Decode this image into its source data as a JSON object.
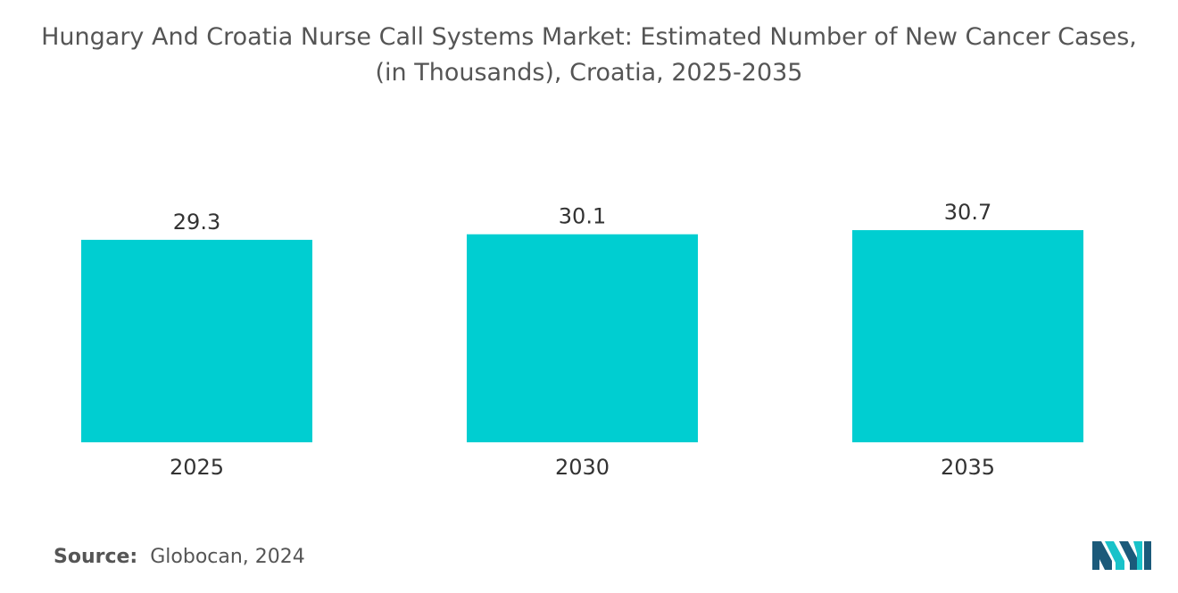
{
  "chart_data": {
    "type": "bar",
    "title_lines": [
      "Hungary And Croatia Nurse Call Systems Market: Estimated Number of New Cancer Cases,",
      "(in Thousands), Croatia, 2025-2035"
    ],
    "categories": [
      "2025",
      "2030",
      "2035"
    ],
    "values": [
      29.3,
      30.1,
      30.7
    ],
    "value_labels": [
      "29.3",
      "30.1",
      "30.7"
    ],
    "xlabel": "",
    "ylabel": "",
    "ylim": [
      0,
      32
    ],
    "grid": false,
    "legend": "none",
    "bar_color": "#00CED1"
  },
  "source": {
    "label": "Source:",
    "text": "Globocan, 2024"
  },
  "logo": {
    "icon": "mordor-intelligence-logo-icon",
    "colors": [
      "#1B5A7A",
      "#19C2C9"
    ]
  }
}
